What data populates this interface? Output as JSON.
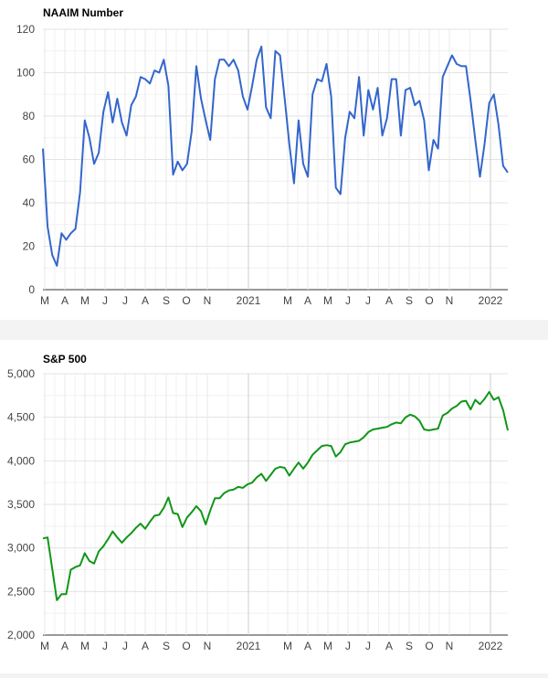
{
  "chart_data": [
    {
      "type": "line",
      "title": "NAAIM Number",
      "xlabel": "",
      "ylabel": "",
      "ylim": [
        0,
        120
      ],
      "yticks": [
        "0",
        "20",
        "40",
        "60",
        "80",
        "100",
        "120"
      ],
      "xticks": [
        "M",
        "A",
        "M",
        "J",
        "J",
        "A",
        "S",
        "O",
        "N",
        "2021",
        "M",
        "A",
        "M",
        "J",
        "J",
        "A",
        "S",
        "O",
        "N",
        "2022"
      ],
      "grid": true,
      "color": "#3366cc",
      "series": [
        {
          "values": [
            65,
            29,
            16,
            11,
            26,
            23,
            26,
            28,
            45,
            78,
            70,
            58,
            63,
            82,
            91,
            77,
            88,
            77,
            71,
            85,
            89,
            98,
            97,
            95,
            101,
            100,
            106,
            94,
            53,
            59,
            55,
            58,
            73,
            103,
            88,
            78,
            69,
            97,
            106,
            106,
            103,
            106,
            101,
            89,
            83,
            94,
            106,
            112,
            84,
            79,
            110,
            108,
            88,
            67,
            49,
            78,
            58,
            52,
            90,
            97,
            96,
            104,
            89,
            47,
            44,
            70,
            82,
            79,
            98,
            71,
            92,
            83,
            93,
            71,
            79,
            97,
            97,
            71,
            92,
            93,
            85,
            87,
            78,
            55,
            69,
            65,
            98,
            103,
            108,
            104,
            103,
            103,
            87,
            69,
            52,
            67,
            86,
            90,
            76,
            57,
            54
          ]
        }
      ]
    },
    {
      "type": "line",
      "title": "S&P 500",
      "xlabel": "",
      "ylabel": "",
      "ylim": [
        2000,
        5000
      ],
      "yticks": [
        "2,000",
        "2,500",
        "3,000",
        "3,500",
        "4,000",
        "4,500",
        "5,000"
      ],
      "xticks": [
        "M",
        "A",
        "M",
        "J",
        "J",
        "A",
        "S",
        "O",
        "N",
        "2021",
        "M",
        "A",
        "M",
        "J",
        "J",
        "A",
        "S",
        "O",
        "N",
        "2022"
      ],
      "grid": true,
      "color": "#109618",
      "series": [
        {
          "values": [
            3110,
            3120,
            2760,
            2400,
            2470,
            2470,
            2750,
            2780,
            2800,
            2940,
            2850,
            2820,
            2960,
            3020,
            3100,
            3190,
            3120,
            3060,
            3120,
            3170,
            3230,
            3280,
            3220,
            3300,
            3370,
            3380,
            3460,
            3580,
            3400,
            3390,
            3240,
            3350,
            3410,
            3480,
            3420,
            3270,
            3430,
            3570,
            3570,
            3630,
            3660,
            3670,
            3700,
            3690,
            3730,
            3750,
            3810,
            3850,
            3770,
            3840,
            3910,
            3930,
            3920,
            3830,
            3910,
            3980,
            3910,
            3980,
            4070,
            4120,
            4170,
            4180,
            4170,
            4050,
            4100,
            4190,
            4210,
            4220,
            4230,
            4270,
            4330,
            4360,
            4370,
            4380,
            4390,
            4420,
            4440,
            4430,
            4500,
            4530,
            4510,
            4460,
            4360,
            4350,
            4360,
            4370,
            4520,
            4550,
            4600,
            4630,
            4680,
            4690,
            4590,
            4700,
            4650,
            4710,
            4790,
            4700,
            4730,
            4580,
            4350
          ]
        }
      ]
    }
  ]
}
